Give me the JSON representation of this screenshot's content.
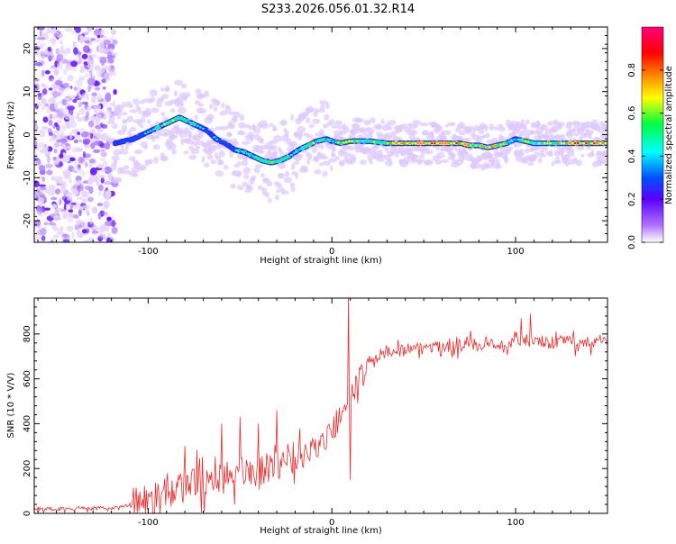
{
  "figure": {
    "title": "S233.2026.056.01.32.R14"
  },
  "chart_data": [
    {
      "type": "heatmap",
      "name": "spectrogram",
      "xlabel": "Height of straight line (km)",
      "ylabel": "Frequency (Hz)",
      "xlim": [
        -162,
        150
      ],
      "ylim": [
        -25,
        25
      ],
      "xticks": [
        -100,
        0,
        100
      ],
      "yticks": [
        -20,
        -10,
        0,
        10,
        20
      ],
      "colorbar": {
        "label": "Normalized spectral amplitude",
        "range": [
          0,
          1
        ],
        "ticks": [
          "0.0",
          "0.2",
          "0.4",
          "0.6",
          "0.8"
        ],
        "colors": [
          "#ffffff",
          "#b070ff",
          "#5a00ff",
          "#0050ff",
          "#00ffff",
          "#00ff40",
          "#ffff00",
          "#ff8000",
          "#ff0000",
          "#ff0080"
        ]
      },
      "noise_region_x": [
        -162,
        -118
      ],
      "ridge": {
        "x": [
          -118,
          -113,
          -108,
          -103,
          -98,
          -93,
          -88,
          -83,
          -78,
          -73,
          -68,
          -63,
          -58,
          -53,
          -48,
          -43,
          -38,
          -33,
          -28,
          -23,
          -18,
          -13,
          -8,
          -3,
          0,
          5,
          10,
          15,
          20,
          30,
          40,
          50,
          60,
          70,
          75,
          80,
          85,
          90,
          95,
          100,
          105,
          110,
          120,
          130,
          140,
          150
        ],
        "frequency_hz": [
          -2,
          -1.5,
          -1,
          0,
          1,
          2,
          3,
          4,
          3,
          2,
          1,
          -1,
          -2,
          -3.5,
          -4,
          -5,
          -6,
          -6.5,
          -6,
          -5,
          -3.5,
          -2.5,
          -1.5,
          -1,
          -1.5,
          -2,
          -1.5,
          -1.5,
          -1.5,
          -2,
          -2,
          -2,
          -2,
          -2,
          -2.5,
          -2.5,
          -3,
          -2.5,
          -2,
          -1,
          -1.5,
          -2,
          -2,
          -2,
          -2,
          -2
        ],
        "amplitude": [
          0.35,
          0.35,
          0.4,
          0.45,
          0.5,
          0.6,
          0.7,
          0.7,
          0.65,
          0.55,
          0.5,
          0.45,
          0.45,
          0.5,
          0.55,
          0.6,
          0.65,
          0.7,
          0.65,
          0.6,
          0.55,
          0.6,
          0.65,
          0.6,
          0.55,
          0.7,
          0.8,
          0.7,
          0.6,
          0.7,
          0.85,
          0.9,
          0.9,
          0.85,
          0.85,
          0.8,
          0.85,
          0.8,
          0.6,
          0.55,
          0.7,
          0.7,
          0.75,
          0.9,
          0.9,
          0.9
        ]
      }
    },
    {
      "type": "line",
      "name": "snr",
      "xlabel": "Height of straight line (km)",
      "ylabel": "SNR (10 * V/V)",
      "xlim": [
        -162,
        150
      ],
      "ylim": [
        0,
        960
      ],
      "xticks": [
        -100,
        0,
        100
      ],
      "yticks": [
        0,
        200,
        400,
        600,
        800
      ],
      "color": "#ee2a2a",
      "series": [
        {
          "name": "SNR",
          "x": [
            -162,
            -150,
            -140,
            -130,
            -120,
            -115,
            -110,
            -100,
            -90,
            -80,
            -70,
            -60,
            -50,
            -40,
            -30,
            -20,
            -10,
            -5,
            0,
            5,
            8,
            10,
            12,
            15,
            20,
            25,
            30,
            40,
            50,
            60,
            70,
            80,
            90,
            100,
            110,
            120,
            130,
            140,
            150
          ],
          "y": [
            20,
            20,
            22,
            22,
            25,
            30,
            40,
            60,
            90,
            120,
            150,
            170,
            180,
            190,
            210,
            240,
            280,
            320,
            380,
            430,
            480,
            520,
            540,
            600,
            660,
            700,
            720,
            730,
            740,
            745,
            750,
            755,
            760,
            760,
            765,
            760,
            765,
            765,
            765
          ]
        }
      ],
      "spikes": [
        {
          "x": -80,
          "y": 300
        },
        {
          "x": -60,
          "y": 400
        },
        {
          "x": -50,
          "y": 430
        },
        {
          "x": -40,
          "y": 400
        },
        {
          "x": -30,
          "y": 460
        },
        {
          "x": 9,
          "y": 960
        },
        {
          "x": 10,
          "y": 150
        },
        {
          "x": 103,
          "y": 870
        },
        {
          "x": 108,
          "y": 890
        }
      ],
      "noise_amplitude": [
        {
          "x_from": -162,
          "x_to": -110,
          "amp": 8
        },
        {
          "x_from": -110,
          "x_to": -20,
          "amp": 70
        },
        {
          "x_from": -20,
          "x_to": 20,
          "amp": 60
        },
        {
          "x_from": 20,
          "x_to": 150,
          "amp": 30
        }
      ]
    }
  ]
}
